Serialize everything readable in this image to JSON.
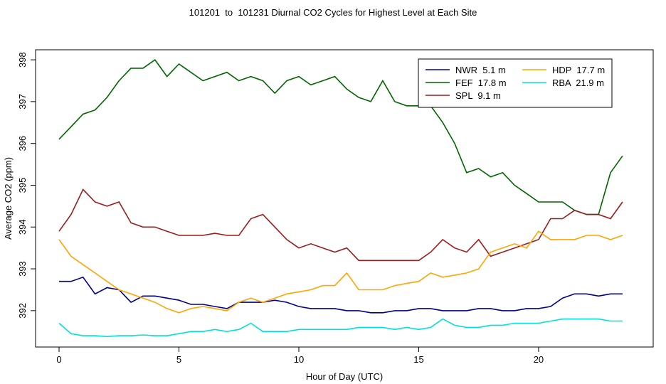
{
  "chart_data": {
    "type": "line",
    "title": "101201  to  101231 Diurnal CO2 Cycles for Highest Level at Each Site",
    "xlabel": "Hour of Day (UTC)",
    "ylabel": "Average CO2 (ppm)",
    "xlim": [
      -0.98,
      24.78
    ],
    "ylim": [
      391.13,
      398.24
    ],
    "xticks": [
      0,
      5,
      10,
      15,
      20
    ],
    "yticks": [
      392,
      393,
      394,
      395,
      396,
      397,
      398
    ],
    "grid": false,
    "legend": "top-right",
    "x": [
      0,
      0.5,
      1,
      1.5,
      2,
      2.5,
      3,
      3.5,
      4,
      4.5,
      5,
      5.5,
      6,
      6.5,
      7,
      7.5,
      8,
      8.5,
      9,
      9.5,
      10,
      10.5,
      11,
      11.5,
      12,
      12.5,
      13,
      13.5,
      14,
      14.5,
      15,
      15.5,
      16,
      16.5,
      17,
      17.5,
      18,
      18.5,
      19,
      19.5,
      20,
      20.5,
      21,
      21.5,
      22,
      22.5,
      23,
      23.5
    ],
    "series": [
      {
        "name": "NWR  5.1 m",
        "color": "#00008b",
        "values": [
          392.7,
          392.7,
          392.8,
          392.4,
          392.55,
          392.5,
          392.2,
          392.35,
          392.35,
          392.3,
          392.25,
          392.15,
          392.15,
          392.1,
          392.05,
          392.2,
          392.2,
          392.2,
          392.25,
          392.2,
          392.1,
          392.05,
          392.05,
          392.05,
          392.0,
          392.0,
          391.95,
          391.95,
          392.0,
          392.0,
          392.05,
          392.05,
          392.0,
          392.0,
          392.0,
          392.05,
          392.05,
          392.0,
          392.0,
          392.05,
          392.05,
          392.1,
          392.3,
          392.4,
          392.4,
          392.35,
          392.4,
          392.4
        ]
      },
      {
        "name": "FEF  17.8 m",
        "color": "#006400",
        "values": [
          396.1,
          396.4,
          396.7,
          396.8,
          397.1,
          397.5,
          397.8,
          397.8,
          398.0,
          397.6,
          397.9,
          397.7,
          397.5,
          397.6,
          397.7,
          397.5,
          397.6,
          397.5,
          397.2,
          397.5,
          397.6,
          397.4,
          397.5,
          397.6,
          397.3,
          397.1,
          397.0,
          397.5,
          397.0,
          396.9,
          396.9,
          396.9,
          396.5,
          396.0,
          395.3,
          395.4,
          395.2,
          395.3,
          395.0,
          394.8,
          394.6,
          394.6,
          394.6,
          394.4,
          394.3,
          394.3,
          395.3,
          395.7
        ]
      },
      {
        "name": "SPL  9.1 m",
        "color": "#9b1c1c",
        "values": [
          393.9,
          394.3,
          394.9,
          394.6,
          394.5,
          394.6,
          394.1,
          394.0,
          394.0,
          393.9,
          393.8,
          393.8,
          393.8,
          393.85,
          393.8,
          393.8,
          394.2,
          394.3,
          394.0,
          393.7,
          393.5,
          393.6,
          393.5,
          393.4,
          393.5,
          393.2,
          393.2,
          393.2,
          393.2,
          393.2,
          393.2,
          393.4,
          393.7,
          393.5,
          393.4,
          393.7,
          393.3,
          393.4,
          393.5,
          393.6,
          393.7,
          394.2,
          394.2,
          394.4,
          394.3,
          394.3,
          394.2,
          394.6
        ]
      },
      {
        "name": "HDP  17.7 m",
        "color": "#ffa500",
        "values": [
          393.7,
          393.3,
          393.1,
          392.9,
          392.7,
          392.5,
          392.4,
          392.3,
          392.2,
          392.05,
          391.95,
          392.05,
          392.1,
          392.05,
          392.0,
          392.2,
          392.3,
          392.2,
          392.3,
          392.4,
          392.45,
          392.5,
          392.6,
          392.6,
          392.9,
          392.5,
          392.5,
          392.5,
          392.6,
          392.65,
          392.7,
          392.9,
          392.8,
          392.85,
          392.9,
          393.0,
          393.4,
          393.5,
          393.6,
          393.5,
          393.9,
          393.7,
          393.7,
          393.7,
          393.8,
          393.8,
          393.7,
          393.8
        ]
      },
      {
        "name": "RBA  21.9 m",
        "color": "#00e0e0",
        "values": [
          391.7,
          391.45,
          391.4,
          391.4,
          391.38,
          391.4,
          391.4,
          391.42,
          391.4,
          391.4,
          391.45,
          391.5,
          391.5,
          391.55,
          391.5,
          391.55,
          391.7,
          391.5,
          391.5,
          391.5,
          391.55,
          391.55,
          391.55,
          391.55,
          391.55,
          391.6,
          391.6,
          391.6,
          391.55,
          391.6,
          391.55,
          391.6,
          391.8,
          391.65,
          391.6,
          391.6,
          391.65,
          391.65,
          391.7,
          391.7,
          391.7,
          391.75,
          391.8,
          391.8,
          391.8,
          391.8,
          391.75,
          391.75
        ]
      }
    ]
  }
}
